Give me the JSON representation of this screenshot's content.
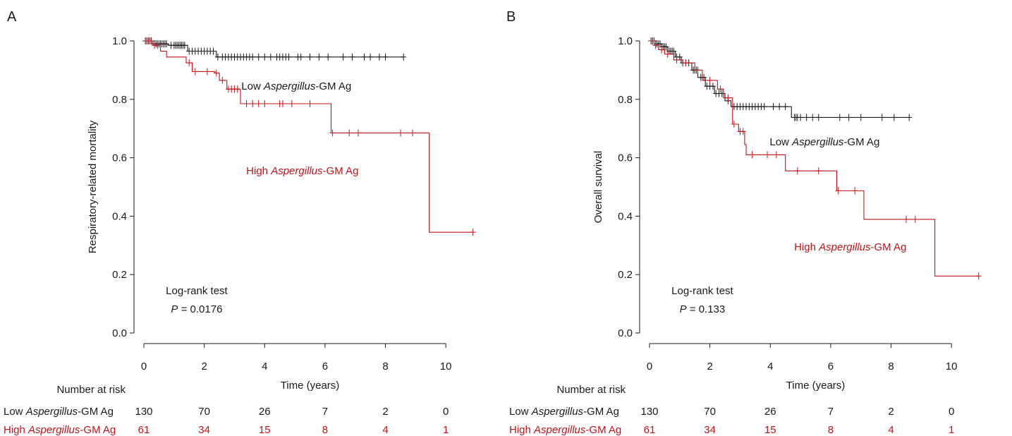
{
  "colors": {
    "low": "#1a1a1a",
    "high": "#c0141b",
    "axis": "#1a1a1a"
  },
  "chart_data": [
    {
      "panel_label": "A",
      "type": "line",
      "step": true,
      "ylabel": "Respiratory-related mortality",
      "xlabel": "Time (years)",
      "xlim": [
        0,
        11
      ],
      "ylim": [
        0,
        1
      ],
      "x_ticks": [
        "0",
        "2",
        "4",
        "6",
        "8",
        "10"
      ],
      "y_ticks": [
        "0.0",
        "0.2",
        "0.4",
        "0.6",
        "0.8",
        "1.0"
      ],
      "series": [
        {
          "key": "low",
          "name_prefix": "Low ",
          "name_italic": "Aspergillus",
          "name_suffix": "-GM Ag",
          "steps": [
            [
              0,
              1.0
            ],
            [
              0.3,
              0.99
            ],
            [
              0.8,
              0.985
            ],
            [
              1.45,
              0.965
            ],
            [
              2.4,
              0.945
            ],
            [
              8.6,
              0.945
            ]
          ],
          "censor_x": [
            0.05,
            0.1,
            0.15,
            0.2,
            0.25,
            0.35,
            0.4,
            0.45,
            0.5,
            0.55,
            0.6,
            0.65,
            0.7,
            0.75,
            0.9,
            1.0,
            1.05,
            1.1,
            1.15,
            1.2,
            1.25,
            1.3,
            1.35,
            1.5,
            1.6,
            1.7,
            1.8,
            1.9,
            2.0,
            2.1,
            2.2,
            2.3,
            2.45,
            2.6,
            2.7,
            2.8,
            2.9,
            3.0,
            3.1,
            3.2,
            3.3,
            3.4,
            3.5,
            3.6,
            3.8,
            4.0,
            4.2,
            4.4,
            4.5,
            4.6,
            4.7,
            4.8,
            5.1,
            5.2,
            5.5,
            5.8,
            6.1,
            6.6,
            6.9,
            7.3,
            7.5,
            7.8,
            8.0,
            8.6
          ]
        },
        {
          "key": "high",
          "name_prefix": "High ",
          "name_italic": "Aspergillus",
          "name_suffix": "-GM Ag",
          "steps": [
            [
              0,
              1.0
            ],
            [
              0.3,
              0.985
            ],
            [
              0.55,
              0.965
            ],
            [
              0.75,
              0.945
            ],
            [
              1.4,
              0.925
            ],
            [
              1.6,
              0.895
            ],
            [
              2.35,
              0.89
            ],
            [
              2.5,
              0.865
            ],
            [
              2.75,
              0.835
            ],
            [
              3.2,
              0.785
            ],
            [
              6.2,
              0.685
            ],
            [
              9.45,
              0.345
            ],
            [
              10.9,
              0.345
            ]
          ],
          "censor_x": [
            0.1,
            0.2,
            0.35,
            0.45,
            1.5,
            1.7,
            2.1,
            2.4,
            2.6,
            2.8,
            2.9,
            3.0,
            3.1,
            3.4,
            3.6,
            3.8,
            4.0,
            4.5,
            4.6,
            4.9,
            5.5,
            6.25,
            6.8,
            7.1,
            8.5,
            8.9,
            10.9
          ]
        }
      ],
      "annotations": {
        "low_label_pos": [
          5.05,
          0.845
        ],
        "high_label_pos": [
          5.25,
          0.555
        ],
        "test_title": "Log-rank test",
        "p_italic": "P",
        "p_value": "= 0.0176"
      },
      "risk_table": {
        "title": "Number at risk",
        "rows": [
          {
            "key": "low",
            "label_prefix": "Low ",
            "label_italic": "Aspergillus",
            "label_suffix": "-GM Ag",
            "values": [
              "130",
              "70",
              "26",
              "7",
              "2",
              "0"
            ]
          },
          {
            "key": "high",
            "label_prefix": "High ",
            "label_italic": "Aspergillus",
            "label_suffix": "-GM Ag",
            "values": [
              "61",
              "34",
              "15",
              "8",
              "4",
              "1"
            ]
          }
        ]
      }
    },
    {
      "panel_label": "B",
      "type": "line",
      "step": true,
      "ylabel": "Overall survival",
      "xlabel": "Time (years)",
      "xlim": [
        0,
        11
      ],
      "ylim": [
        0,
        1
      ],
      "x_ticks": [
        "0",
        "2",
        "4",
        "6",
        "8",
        "10"
      ],
      "y_ticks": [
        "0.0",
        "0.2",
        "0.4",
        "0.6",
        "0.8",
        "1.0"
      ],
      "series": [
        {
          "key": "low",
          "name_prefix": "Low ",
          "name_italic": "Aspergillus",
          "name_suffix": "-GM Ag",
          "steps": [
            [
              0,
              1.0
            ],
            [
              0.2,
              0.99
            ],
            [
              0.4,
              0.98
            ],
            [
              0.6,
              0.965
            ],
            [
              0.85,
              0.945
            ],
            [
              1.05,
              0.925
            ],
            [
              1.4,
              0.9
            ],
            [
              1.6,
              0.875
            ],
            [
              1.85,
              0.845
            ],
            [
              2.15,
              0.82
            ],
            [
              2.5,
              0.795
            ],
            [
              2.7,
              0.775
            ],
            [
              4.7,
              0.738
            ],
            [
              8.6,
              0.738
            ]
          ],
          "censor_x": [
            0.05,
            0.1,
            0.15,
            0.25,
            0.3,
            0.35,
            0.45,
            0.5,
            0.55,
            0.65,
            0.7,
            0.75,
            0.8,
            0.9,
            1.0,
            1.1,
            1.2,
            1.3,
            1.45,
            1.5,
            1.55,
            1.7,
            1.8,
            1.9,
            2.0,
            2.1,
            2.2,
            2.3,
            2.4,
            2.6,
            2.8,
            2.9,
            3.0,
            3.1,
            3.2,
            3.3,
            3.4,
            3.5,
            3.6,
            3.7,
            3.8,
            4.1,
            4.3,
            4.5,
            4.8,
            4.85,
            4.9,
            5.0,
            5.2,
            5.4,
            5.6,
            6.3,
            6.6,
            7.0,
            7.7,
            8.1,
            8.6
          ]
        },
        {
          "key": "high",
          "name_prefix": "High ",
          "name_italic": "Aspergillus",
          "name_suffix": "-GM Ag",
          "steps": [
            [
              0,
              1.0
            ],
            [
              0.15,
              0.985
            ],
            [
              0.3,
              0.97
            ],
            [
              0.5,
              0.955
            ],
            [
              0.8,
              0.935
            ],
            [
              1.1,
              0.925
            ],
            [
              1.5,
              0.9
            ],
            [
              1.75,
              0.865
            ],
            [
              2.25,
              0.835
            ],
            [
              2.45,
              0.805
            ],
            [
              2.75,
              0.715
            ],
            [
              2.95,
              0.69
            ],
            [
              3.15,
              0.645
            ],
            [
              3.2,
              0.61
            ],
            [
              4.5,
              0.555
            ],
            [
              6.2,
              0.487
            ],
            [
              7.1,
              0.389
            ],
            [
              9.45,
              0.195
            ],
            [
              10.9,
              0.195
            ]
          ],
          "censor_x": [
            0.1,
            0.2,
            0.4,
            0.6,
            0.9,
            1.2,
            1.6,
            2.0,
            2.35,
            2.6,
            2.8,
            3.0,
            3.1,
            3.4,
            3.9,
            4.2,
            4.9,
            5.6,
            6.25,
            6.8,
            8.5,
            8.8,
            10.9
          ]
        }
      ],
      "annotations": {
        "low_label_pos": [
          5.8,
          0.655
        ],
        "high_label_pos": [
          6.65,
          0.295
        ],
        "test_title": "Log-rank test",
        "p_italic": "P",
        "p_value": "= 0.133"
      },
      "risk_table": {
        "title": "Number at risk",
        "rows": [
          {
            "key": "low",
            "label_prefix": "Low ",
            "label_italic": "Aspergillus",
            "label_suffix": "-GM Ag",
            "values": [
              "130",
              "70",
              "26",
              "7",
              "2",
              "0"
            ]
          },
          {
            "key": "high",
            "label_prefix": "High ",
            "label_italic": "Aspergillus",
            "label_suffix": "-GM Ag",
            "values": [
              "61",
              "34",
              "15",
              "8",
              "4",
              "1"
            ]
          }
        ]
      }
    }
  ]
}
